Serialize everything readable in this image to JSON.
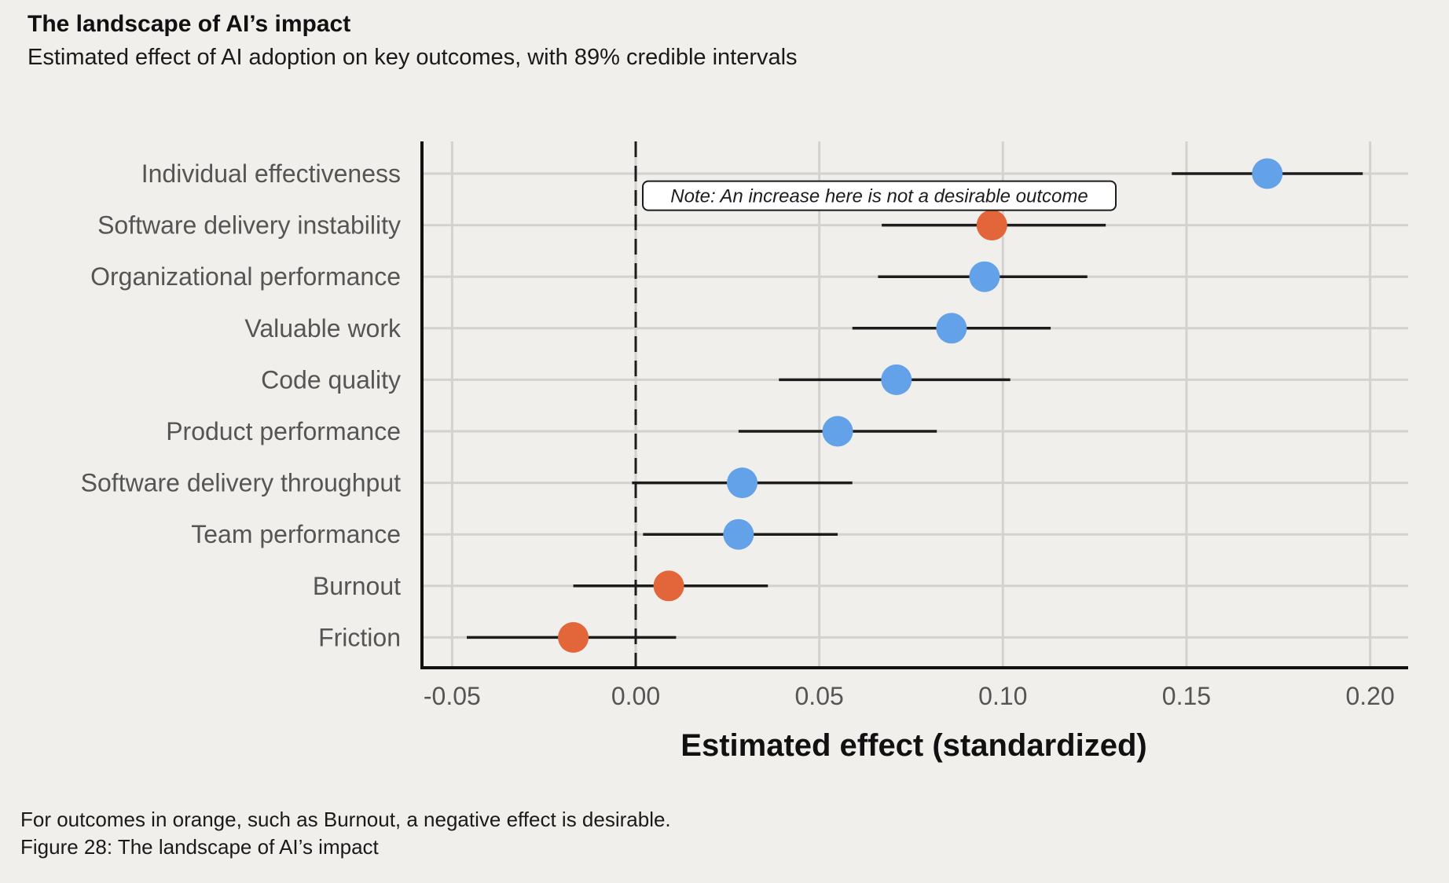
{
  "header": {
    "title": "The landscape of AI’s impact",
    "subtitle": "Estimated effect of AI adoption on key outcomes, with 89% credible intervals"
  },
  "footer": {
    "note": "For outcomes in orange, such as Burnout, a negative effect is desirable.",
    "caption": "Figure 28: The landscape of AI’s impact"
  },
  "chart_data": {
    "type": "scatter",
    "xlabel": "Estimated effect (standardized)",
    "xlim": [
      -0.058,
      0.21
    ],
    "xticks": [
      -0.05,
      0.0,
      0.05,
      0.1,
      0.15,
      0.2
    ],
    "xtick_labels": [
      "-0.05",
      "0.00",
      "0.05",
      "0.10",
      "0.15",
      "0.20"
    ],
    "reference_line": 0.0,
    "grid": true,
    "colors": {
      "positive_desirable": "#63a1e8",
      "negative_desirable": "#e2663a",
      "interval": "#1c1c1c",
      "grid": "#d3d2cf",
      "axis": "#111111"
    },
    "annotation": {
      "text": "Note: An increase here is not a desirable outcome",
      "target": "Software delivery instability"
    },
    "points": [
      {
        "label": "Individual effectiveness",
        "estimate": 0.172,
        "low": 0.146,
        "high": 0.198,
        "negative_desirable": false
      },
      {
        "label": "Software delivery instability",
        "estimate": 0.097,
        "low": 0.067,
        "high": 0.128,
        "negative_desirable": true
      },
      {
        "label": "Organizational performance",
        "estimate": 0.095,
        "low": 0.066,
        "high": 0.123,
        "negative_desirable": false
      },
      {
        "label": "Valuable work",
        "estimate": 0.086,
        "low": 0.059,
        "high": 0.113,
        "negative_desirable": false
      },
      {
        "label": "Code quality",
        "estimate": 0.071,
        "low": 0.039,
        "high": 0.102,
        "negative_desirable": false
      },
      {
        "label": "Product performance",
        "estimate": 0.055,
        "low": 0.028,
        "high": 0.082,
        "negative_desirable": false
      },
      {
        "label": "Software delivery throughput",
        "estimate": 0.029,
        "low": -0.001,
        "high": 0.059,
        "negative_desirable": false
      },
      {
        "label": "Team performance",
        "estimate": 0.028,
        "low": 0.002,
        "high": 0.055,
        "negative_desirable": false
      },
      {
        "label": "Burnout",
        "estimate": 0.009,
        "low": -0.017,
        "high": 0.036,
        "negative_desirable": true
      },
      {
        "label": "Friction",
        "estimate": -0.017,
        "low": -0.046,
        "high": 0.011,
        "negative_desirable": true
      }
    ]
  }
}
